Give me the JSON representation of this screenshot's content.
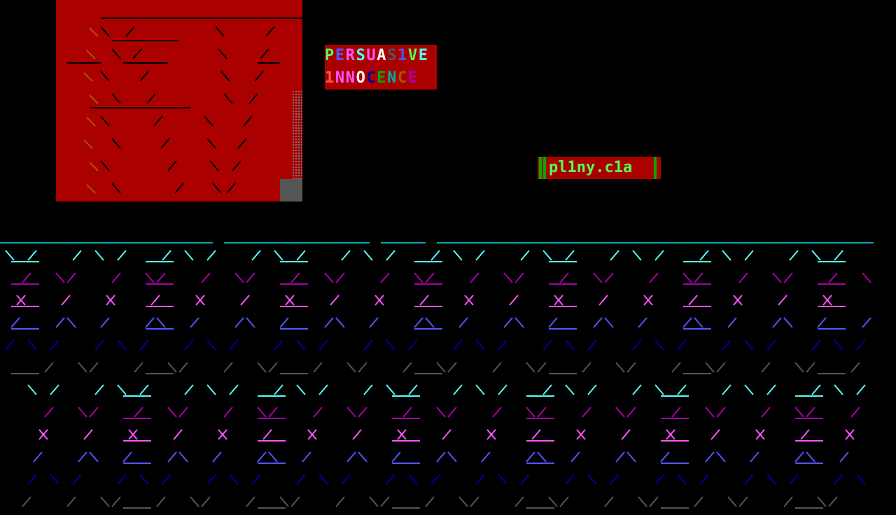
{
  "title": {
    "lines": [
      "PERSUAS1VE",
      "1NNOCENCE"
    ],
    "letter_colors": [
      [
        "#55ff55",
        "#5555ff",
        "#ff55ff",
        "#55ffff",
        "#ff55ff",
        "#ffffff",
        "#555555",
        "#5555ff",
        "#55ff55",
        "#55ffff"
      ],
      [
        "#ff5555",
        "#ff55ff",
        "#ff55ff",
        "#ffffff",
        "#0000aa",
        "#00aa00",
        "#00aaaa",
        "#aa5500",
        "#aa00aa"
      ]
    ]
  },
  "signature": {
    "text": "pl1ny.c1a",
    "bg": "#aa0000",
    "color": "#55ff55"
  },
  "colors": {
    "background": "#000000",
    "panel": "#aa0000",
    "rows": [
      "#55ffff",
      "#aa00aa",
      "#ff55ff",
      "#5555ff",
      "#0000aa",
      "#555555"
    ]
  }
}
